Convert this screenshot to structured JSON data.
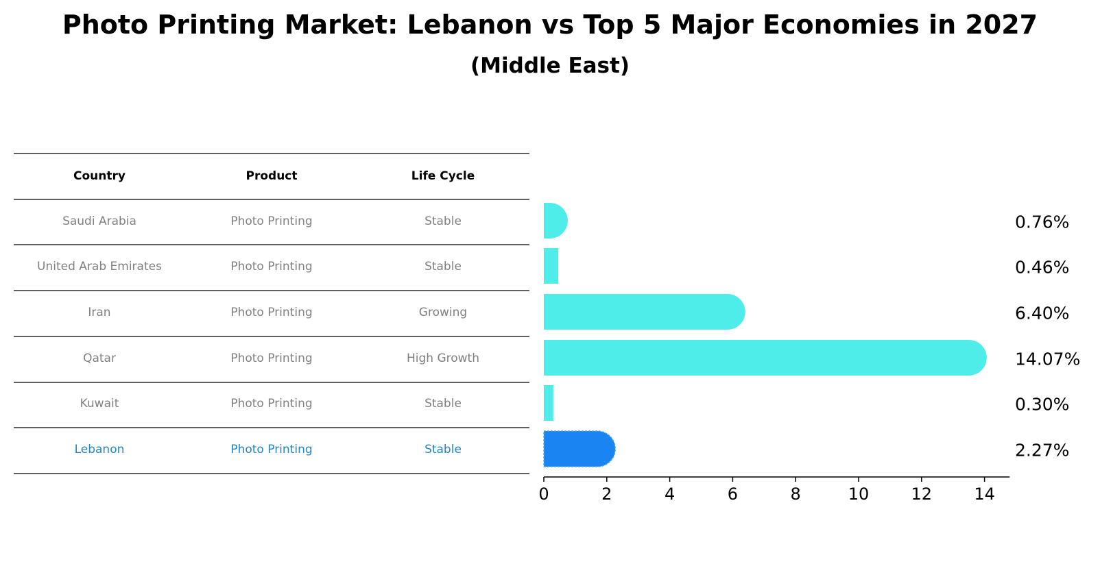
{
  "chart_data": {
    "type": "bar",
    "orientation": "horizontal",
    "title": "Photo Printing Market: Lebanon vs Top 5 Major Economies in 2027",
    "subtitle": "(Middle East)",
    "table": {
      "headers": [
        "Country",
        "Product",
        "Life Cycle"
      ],
      "rows": [
        [
          "Saudi Arabia",
          "Photo Printing",
          "Stable"
        ],
        [
          "United Arab Emirates",
          "Photo Printing",
          "Stable"
        ],
        [
          "Iran",
          "Photo Printing",
          "Growing"
        ],
        [
          "Qatar",
          "Photo Printing",
          "High Growth"
        ],
        [
          "Kuwait",
          "Photo Printing",
          "Stable"
        ],
        [
          "Lebanon",
          "Photo Printing",
          "Stable"
        ]
      ]
    },
    "categories": [
      "Saudi Arabia",
      "United Arab Emirates",
      "Iran",
      "Qatar",
      "Kuwait",
      "Lebanon"
    ],
    "values": [
      0.76,
      0.46,
      6.4,
      14.07,
      0.3,
      2.27
    ],
    "value_labels": [
      "0.76%",
      "0.46%",
      "6.40%",
      "14.07%",
      "0.30%",
      "2.27%"
    ],
    "highlight": "Lebanon",
    "xlim": [
      0,
      14.8
    ],
    "xticks": [
      0,
      2,
      4,
      6,
      8,
      10,
      12,
      14
    ],
    "colors": {
      "bar": "#4EEDEA",
      "highlight": "#1A85F2",
      "row_text": "#808080",
      "highlight_text": "#2484C8"
    }
  }
}
